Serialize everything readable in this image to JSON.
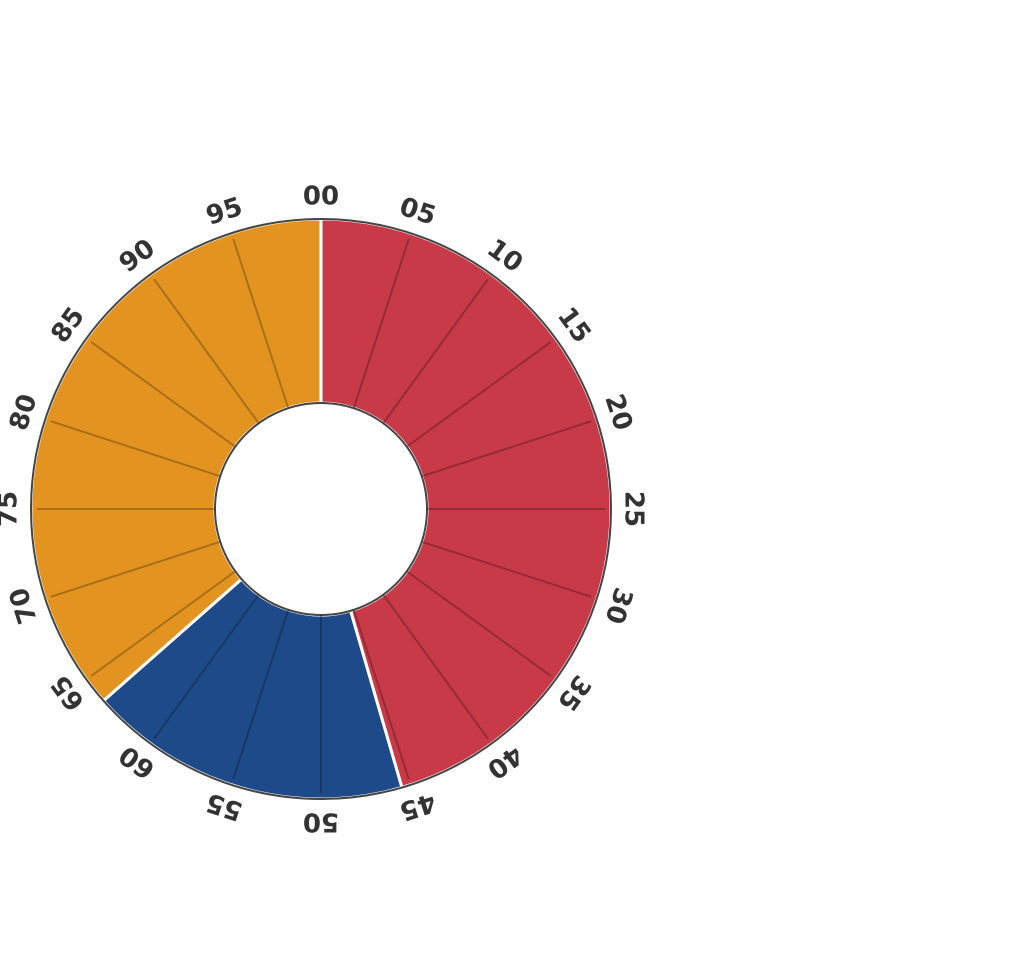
{
  "chart_data": {
    "type": "donut",
    "values": [
      45.5,
      18,
      36.5
    ],
    "colors": [
      "#c93a48",
      "#1f4a8a",
      "#e39420"
    ],
    "xlim": [
      0,
      100
    ],
    "xticks": [
      {
        "value": 0,
        "label": "00"
      },
      {
        "value": 5,
        "label": "05"
      },
      10,
      15,
      20,
      25,
      30,
      35,
      40,
      45,
      50,
      55,
      60,
      65,
      70,
      75,
      80,
      85,
      90,
      95
    ]
  }
}
